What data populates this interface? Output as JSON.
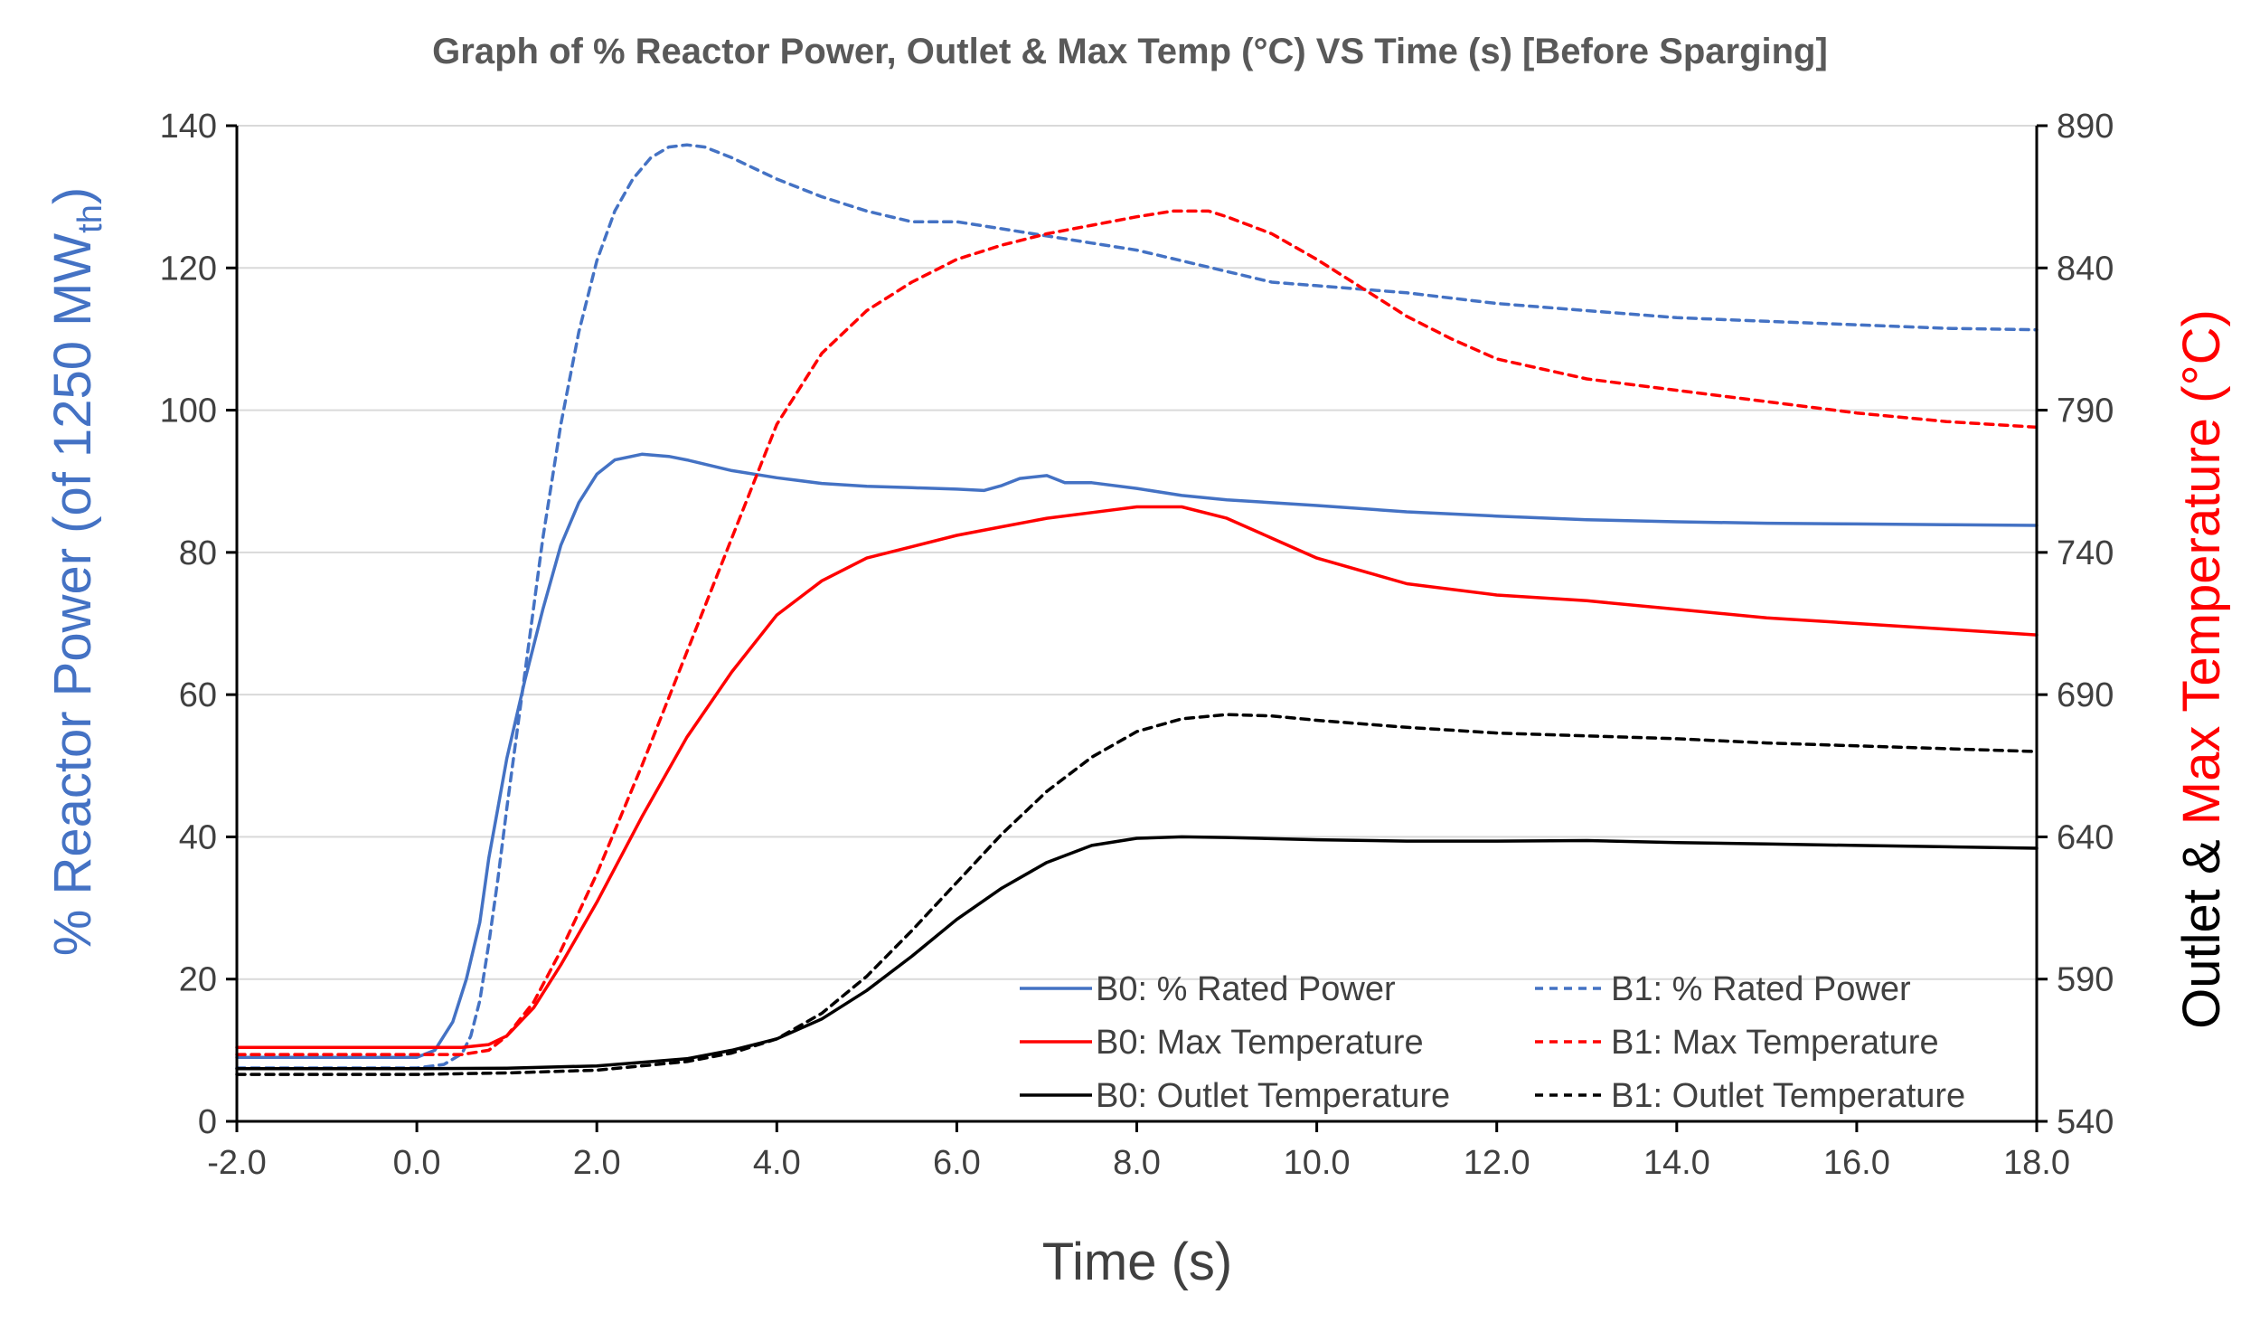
{
  "chart_data": {
    "type": "line",
    "title": "Graph of % Reactor Power, Outlet & Max Temp (°C) VS Time (s) [Before Sparging]",
    "xlabel": "Time (s)",
    "ylabel_left_prefix": "% Reactor Power (of 1250 MW",
    "ylabel_left_sub": "th",
    "ylabel_left_suffix": ")",
    "ylabel_right_prefix": "Outlet & ",
    "ylabel_right_highlight": "Max Temperature (°C)",
    "xlim": [
      -2,
      18
    ],
    "ylim_left": [
      0,
      140
    ],
    "ylim_right": [
      540,
      890
    ],
    "x_ticks": [
      -2,
      0,
      2,
      4,
      6,
      8,
      10,
      12,
      14,
      16,
      18
    ],
    "x_tick_labels": [
      "-2.0",
      "0.0",
      "2.0",
      "4.0",
      "6.0",
      "8.0",
      "10.0",
      "12.0",
      "14.0",
      "16.0",
      "18.0"
    ],
    "y_left_ticks": [
      0,
      20,
      40,
      60,
      80,
      100,
      120,
      140
    ],
    "y_left_tick_labels": [
      "0",
      "20",
      "40",
      "60",
      "80",
      "100",
      "120",
      "140"
    ],
    "y_right_ticks": [
      540,
      590,
      640,
      690,
      740,
      790,
      840,
      890
    ],
    "y_right_tick_labels": [
      "540",
      "590",
      "640",
      "690",
      "740",
      "790",
      "840",
      "890"
    ],
    "grid": true,
    "legend_placement": "bottom-right",
    "colors": {
      "power": "#4472C4",
      "max_temp": "#FF0000",
      "outlet": "#000000"
    },
    "series": [
      {
        "name": "B0: % Rated Power",
        "axis": "left",
        "color": "#4472C4",
        "dash": "solid",
        "x": [
          -2,
          0,
          0.2,
          0.4,
          0.55,
          0.7,
          0.8,
          0.9,
          1.0,
          1.2,
          1.4,
          1.6,
          1.8,
          2.0,
          2.2,
          2.5,
          2.8,
          3.0,
          3.5,
          4.0,
          4.5,
          5.0,
          5.5,
          6.0,
          6.3,
          6.5,
          6.7,
          7.0,
          7.2,
          7.5,
          8.0,
          8.5,
          9.0,
          10.0,
          11.0,
          12.0,
          13.0,
          14.0,
          15.0,
          16.0,
          17.0,
          18.0
        ],
        "y": [
          9,
          9,
          10,
          14,
          20,
          28,
          37,
          44,
          51,
          62,
          72,
          81,
          87,
          91,
          93,
          93.8,
          93.5,
          93,
          91.5,
          90.5,
          89.7,
          89.3,
          89.1,
          88.9,
          88.7,
          89.4,
          90.4,
          90.8,
          89.8,
          89.8,
          89,
          88,
          87.4,
          86.6,
          85.7,
          85.1,
          84.6,
          84.3,
          84.1,
          84.0,
          83.9,
          83.8
        ]
      },
      {
        "name": "B1: % Rated Power",
        "axis": "left",
        "color": "#4472C4",
        "dash": "dashed",
        "x": [
          -2,
          0,
          0.3,
          0.5,
          0.6,
          0.7,
          0.8,
          0.9,
          1.0,
          1.2,
          1.4,
          1.6,
          1.8,
          2.0,
          2.2,
          2.4,
          2.6,
          2.8,
          3.0,
          3.2,
          3.5,
          4.0,
          4.5,
          5.0,
          5.5,
          6.0,
          6.5,
          7.0,
          7.5,
          8.0,
          8.5,
          9.0,
          9.5,
          10.0,
          11.0,
          12.0,
          13.0,
          14.0,
          15.0,
          16.0,
          17.0,
          18.0
        ],
        "y": [
          7.5,
          7.5,
          8,
          9.5,
          12,
          17,
          25,
          34,
          44,
          63,
          82,
          98,
          111,
          121,
          128,
          132.5,
          135.5,
          137,
          137.3,
          137,
          135.5,
          132.5,
          130,
          128,
          126.5,
          126.5,
          125.5,
          124.5,
          123.5,
          122.5,
          121,
          119.5,
          118,
          117.5,
          116.5,
          115,
          114,
          113,
          112.5,
          112,
          111.5,
          111.3
        ]
      },
      {
        "name": "B0: Max Temperature",
        "axis": "right",
        "color": "#FF0000",
        "dash": "solid",
        "x": [
          -2,
          0,
          0.5,
          0.8,
          1.0,
          1.3,
          1.6,
          2.0,
          2.5,
          3.0,
          3.5,
          4.0,
          4.5,
          5.0,
          5.5,
          6.0,
          6.5,
          7.0,
          7.5,
          8.0,
          8.5,
          9.0,
          9.5,
          10.0,
          11.0,
          12.0,
          13.0,
          14.0,
          15.0,
          16.0,
          17.0,
          18.0
        ],
        "y": [
          566,
          566,
          566,
          567,
          570,
          580,
          595,
          617,
          647,
          675,
          698,
          718,
          730,
          738,
          742,
          746,
          749,
          752,
          754,
          756,
          756,
          752,
          745,
          738,
          729,
          725,
          723,
          720,
          717,
          715,
          713,
          711
        ]
      },
      {
        "name": "B1: Max Temperature",
        "axis": "right",
        "color": "#FF0000",
        "dash": "dashed",
        "x": [
          -2,
          0,
          0.5,
          0.8,
          1.0,
          1.3,
          1.6,
          2.0,
          2.5,
          3.0,
          3.5,
          4.0,
          4.5,
          5.0,
          5.5,
          6.0,
          6.5,
          7.0,
          7.5,
          8.0,
          8.4,
          8.8,
          9.0,
          9.5,
          10.0,
          10.5,
          11.0,
          11.5,
          12.0,
          13.0,
          14.0,
          15.0,
          16.0,
          17.0,
          18.0
        ],
        "y": [
          563.5,
          563.5,
          563.5,
          565,
          570,
          582,
          600,
          627,
          665,
          705,
          745,
          785,
          810,
          825,
          835,
          843,
          848,
          852,
          855,
          858,
          860,
          860,
          858,
          852,
          843,
          833,
          823,
          815,
          808,
          801,
          797,
          793,
          789,
          786,
          784
        ]
      },
      {
        "name": "B0: Outlet Temperature",
        "axis": "right",
        "color": "#000000",
        "dash": "solid",
        "x": [
          -2,
          0,
          1.0,
          2.0,
          3.0,
          3.5,
          4.0,
          4.5,
          5.0,
          5.5,
          6.0,
          6.5,
          7.0,
          7.5,
          8.0,
          8.5,
          9.0,
          10.0,
          11.0,
          12.0,
          13.0,
          14.0,
          15.0,
          16.0,
          17.0,
          18.0
        ],
        "y": [
          558.5,
          558.5,
          558.7,
          559.5,
          562,
          565,
          569,
          576,
          586,
          598,
          611,
          622,
          631,
          637,
          639.5,
          640,
          639.8,
          639,
          638.5,
          638.5,
          638.7,
          638,
          637.5,
          637,
          636.5,
          636
        ]
      },
      {
        "name": "B1: Outlet Temperature",
        "axis": "right",
        "color": "#000000",
        "dash": "dashed",
        "x": [
          -2,
          0,
          1.0,
          2.0,
          3.0,
          3.5,
          4.0,
          4.5,
          5.0,
          5.5,
          6.0,
          6.5,
          7.0,
          7.5,
          8.0,
          8.5,
          9.0,
          9.5,
          10.0,
          11.0,
          12.0,
          13.0,
          14.0,
          15.0,
          16.0,
          17.0,
          18.0
        ],
        "y": [
          556.5,
          556.5,
          557,
          558,
          561,
          564,
          569,
          578,
          591,
          607,
          624,
          641,
          656,
          668,
          677,
          681.5,
          683,
          682.5,
          681,
          678.5,
          676.5,
          675.5,
          674.5,
          673,
          672,
          671,
          670
        ]
      }
    ]
  }
}
